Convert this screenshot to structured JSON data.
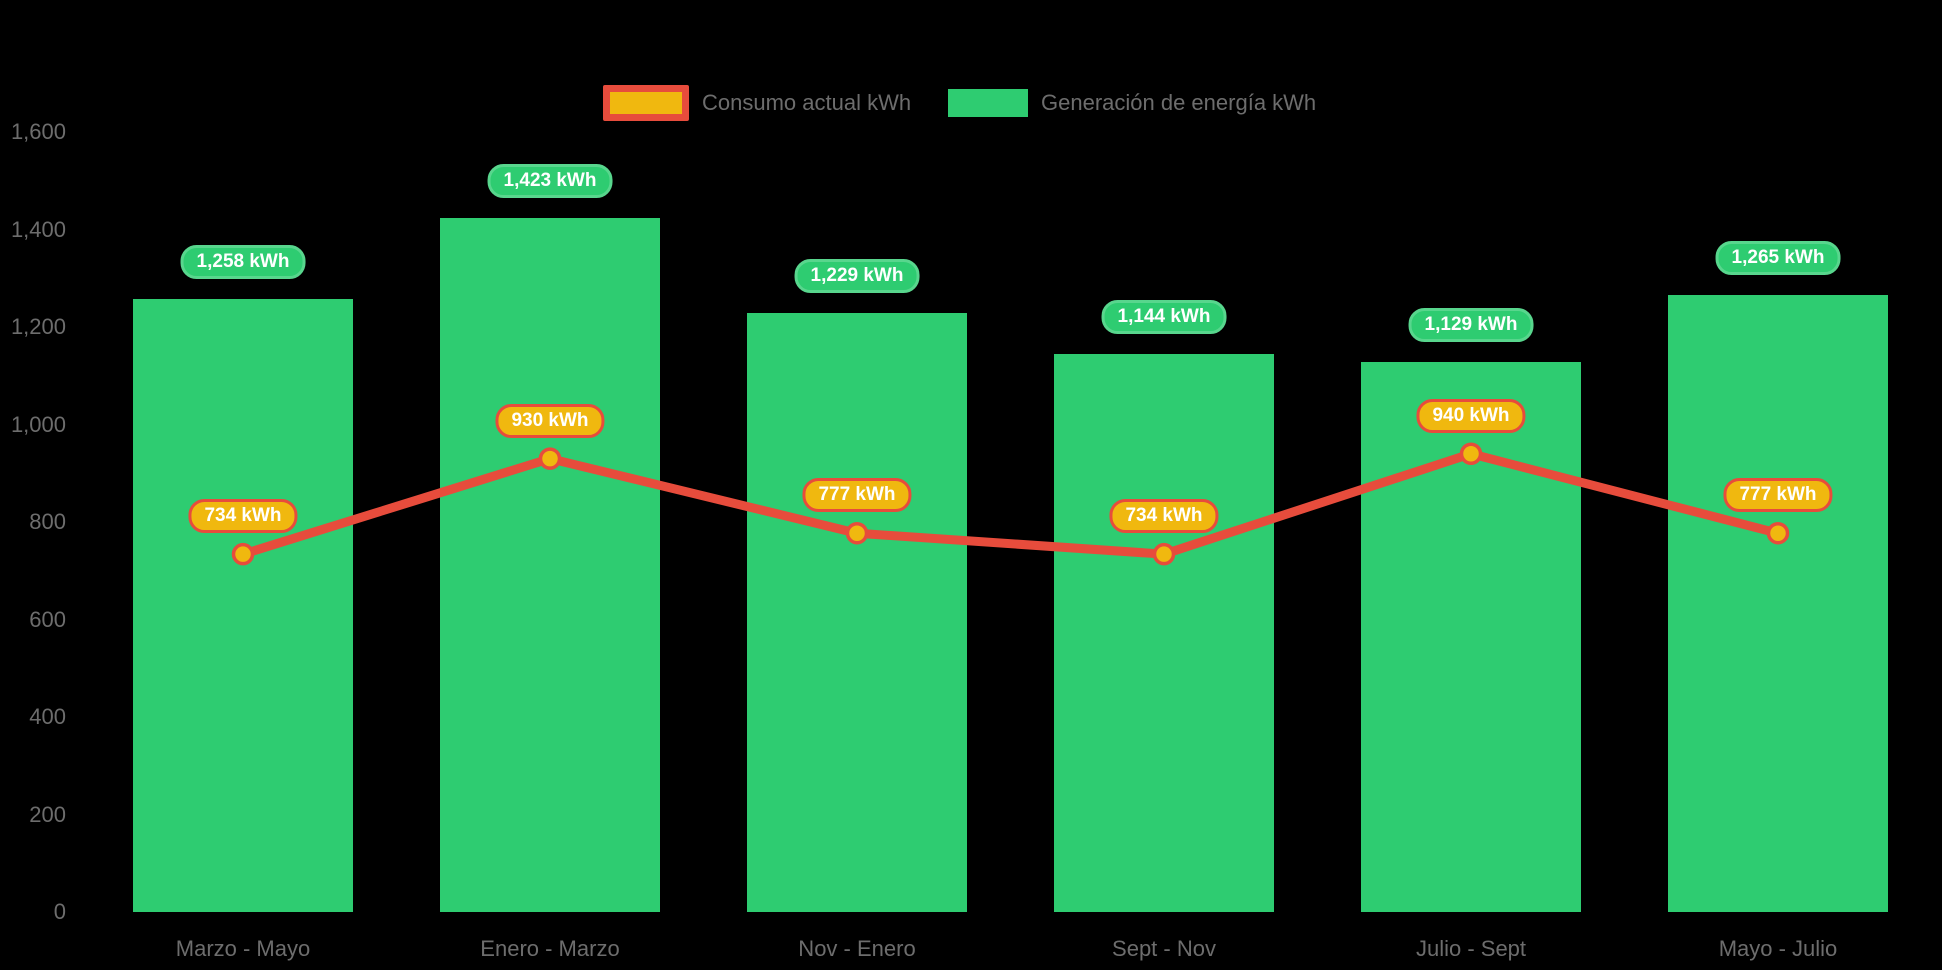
{
  "legend": {
    "items": [
      {
        "label": "Consumo actual kWh",
        "swatch": "line"
      },
      {
        "label": "Generación de energía kWh",
        "swatch": "bar"
      }
    ]
  },
  "chart_data": {
    "type": "bar",
    "title": "",
    "categories": [
      "Marzo - Mayo",
      "Enero - Marzo",
      "Nov - Enero",
      "Sept - Nov",
      "Julio - Sept",
      "Mayo - Julio"
    ],
    "series": [
      {
        "name": "Generación de energía kWh",
        "type": "bar",
        "color": "#2ecc71",
        "values": [
          1258,
          1423,
          1229,
          1144,
          1129,
          1265
        ],
        "labels": [
          "1,258 kWh",
          "1,423 kWh",
          "1,229 kWh",
          "1,144 kWh",
          "1,129 kWh",
          "1,265 kWh"
        ]
      },
      {
        "name": "Consumo actual kWh",
        "type": "line",
        "color": "#e74c3c",
        "point_color": "#f0b80f",
        "values": [
          734,
          930,
          777,
          734,
          940,
          777
        ],
        "labels": [
          "734 kWh",
          "930 kWh",
          "777 kWh",
          "734 kWh",
          "940 kWh",
          "777 kWh"
        ]
      }
    ],
    "ylim": [
      0,
      1600
    ],
    "yticks": [
      {
        "value": 0,
        "label": "0"
      },
      {
        "value": 200,
        "label": "200"
      },
      {
        "value": 400,
        "label": "400"
      },
      {
        "value": 600,
        "label": "600"
      },
      {
        "value": 800,
        "label": "800"
      },
      {
        "value": 1000,
        "label": "1,000"
      },
      {
        "value": 1200,
        "label": "1,200"
      },
      {
        "value": 1400,
        "label": "1,400"
      },
      {
        "value": 1600,
        "label": "1,600"
      }
    ],
    "grid": false,
    "legend_position": "top",
    "background": "#000000"
  },
  "colors": {
    "background": "#000000",
    "bar": "#2ecc71",
    "bar_badge_border": "#58d68d",
    "line": "#e74c3c",
    "point_fill": "#f0b80f",
    "badge_text": "#ffffff",
    "axis_text": "#6d6d6d"
  }
}
